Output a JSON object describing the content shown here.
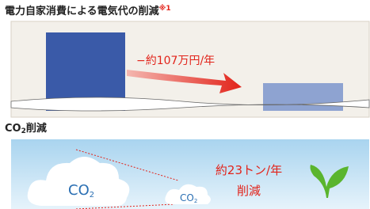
{
  "section1": {
    "title": "電力自家消費による電気代の削減",
    "note": "※1",
    "reduction": "−約107万円/年"
  },
  "section2": {
    "title": {
      "main": "CO",
      "sub": "2",
      "rest": "削減"
    },
    "cloud_large": {
      "main": "CO",
      "sub": "2"
    },
    "cloud_small": {
      "main": "CO",
      "sub": "2"
    },
    "amount": "約23トン/年",
    "reduction": "削減"
  }
}
